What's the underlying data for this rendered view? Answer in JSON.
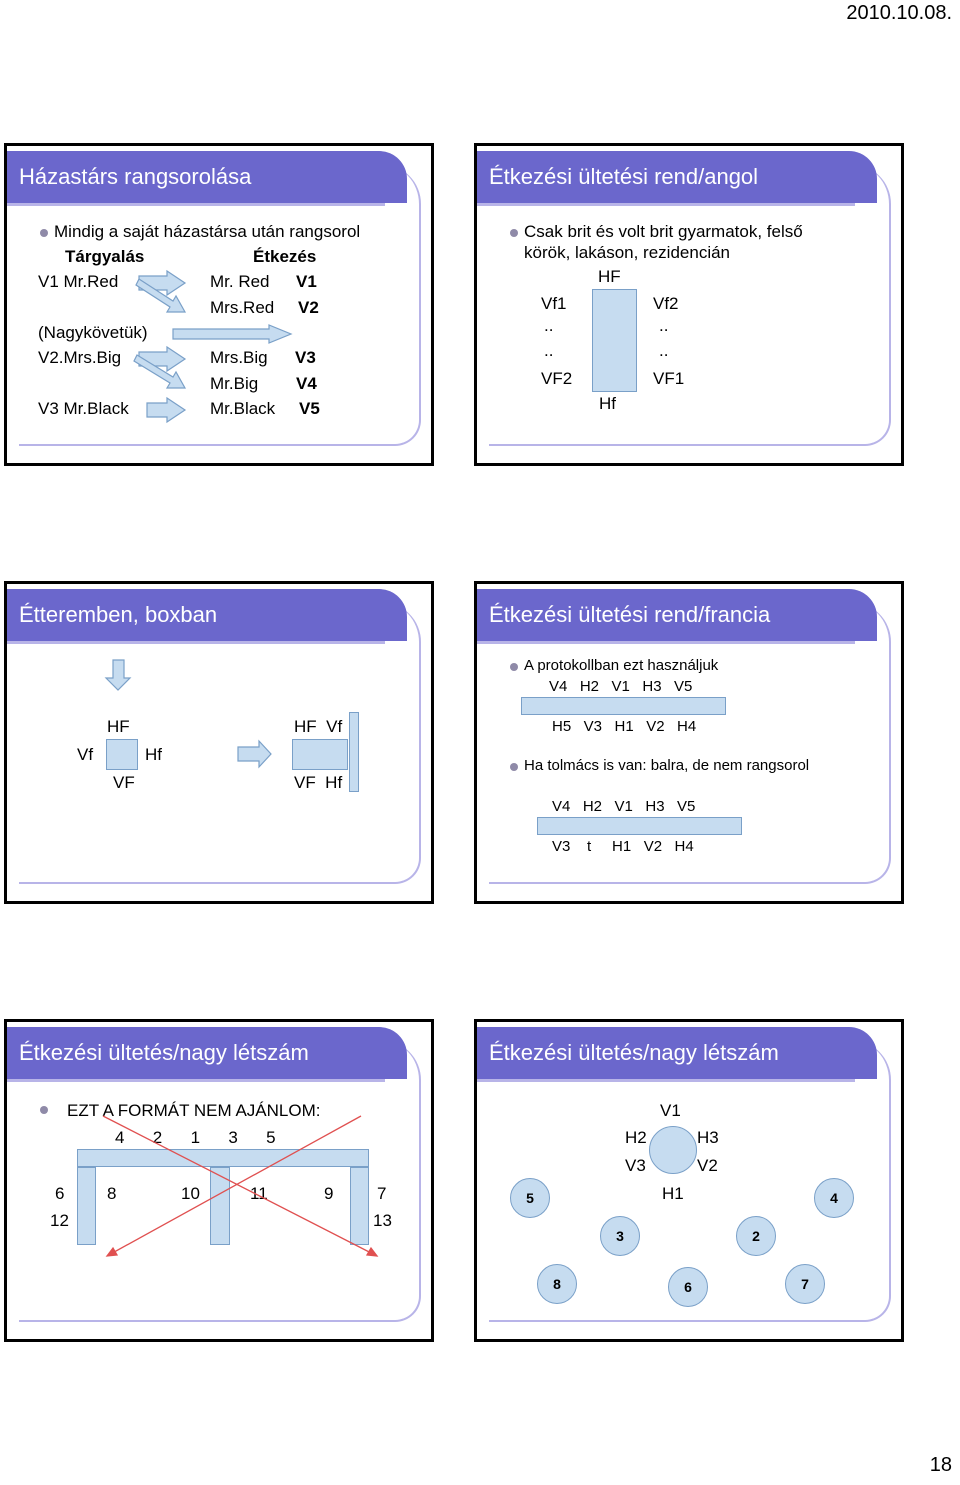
{
  "header": {
    "date": "2010.10.08."
  },
  "footer": {
    "page": "18"
  },
  "s1": {
    "title": "Házastárs rangsorolása",
    "bullet": "Mindig a saját házastársa után rangsorol",
    "col1": "Tárgyalás",
    "col2": "Étkezés",
    "l1": "V1 Mr.Red",
    "l2": "(Nagykövetük)",
    "l3": "V2.Mrs.Big",
    "l4": "V3 Mr.Black",
    "r1": "Mr. Red",
    "r1v": "V1",
    "r2": "Mrs.Red",
    "r2v": "V2",
    "r3": "Mrs.Big",
    "r3v": "V3",
    "r4": "Mr.Big",
    "r4v": "V4",
    "r5": "Mr.Black",
    "r5v": "V5"
  },
  "s2": {
    "title": "Étkezési ültetési rend/angol",
    "bullet_l1": "Csak brit és volt brit gyarmatok, felső",
    "bullet_l2": "körök, lakáson, rezidencián",
    "hf": "HF",
    "vf1": "Vf1",
    "vf2": "Vf2",
    "dots": "..",
    "vF2": "VF2",
    "vF1": "VF1",
    "hf2": "Hf"
  },
  "s3": {
    "title": "Étteremben, boxban",
    "hf": "HF",
    "vf": "Vf",
    "hf2": "Hf",
    "vF": "VF",
    "hfvf": "HF  Vf",
    "vfhf": "VF  Hf"
  },
  "s4": {
    "title": "Étkezési ültetési rend/francia",
    "b1": "A protokollban ezt használjuk",
    "row1": "V4   H2   V1   H3   V5",
    "row2": "H5   V3   H1   V2   H4",
    "b2": "Ha tolmács is van: balra, de nem rangsorol",
    "row3": "V4   H2   V1   H3   V5",
    "row4": "V3    t     H1   V2   H4"
  },
  "s5": {
    "title": "Étkezési ültetés/nagy létszám",
    "bullet": "EZT A FORMÁT NEM AJÁNLOM:",
    "top": "4      2      1      3      5",
    "n6": "6",
    "n8": "8",
    "n10": "10",
    "n11": "11",
    "n9": "9",
    "n7": "7",
    "n12": "12",
    "n13": "13"
  },
  "s6": {
    "title": "Étkezési ültetés/nagy létszám",
    "v1": "V1",
    "h2": "H2",
    "h3": "H3",
    "v3": "V3",
    "v2": "V2",
    "h1": "H1",
    "c5": "5",
    "c4": "4",
    "c3": "3",
    "c2": "2",
    "c8": "8",
    "c6": "6",
    "c7": "7"
  }
}
